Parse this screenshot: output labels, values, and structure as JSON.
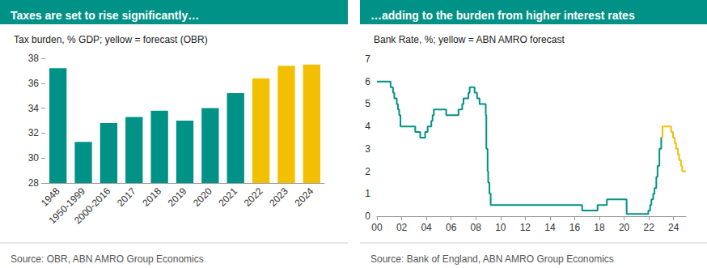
{
  "chart_data": [
    {
      "type": "bar",
      "title": "Taxes are set to rise significantly…",
      "subtitle": "Tax burden, % GDP; yellow = forecast (OBR)",
      "source": "Source: OBR, ABN AMRO Group Economics",
      "categories": [
        "1948",
        "1950-1999",
        "2000-2016",
        "2017",
        "2018",
        "2019",
        "2020",
        "2021",
        "2022",
        "2023",
        "2024"
      ],
      "values": [
        37.2,
        31.3,
        32.8,
        33.3,
        33.8,
        33.0,
        34.0,
        35.2,
        36.4,
        37.4,
        37.5
      ],
      "colors": [
        "#009286",
        "#009286",
        "#009286",
        "#009286",
        "#009286",
        "#009286",
        "#009286",
        "#009286",
        "#f3c000",
        "#f3c000",
        "#f3c000"
      ],
      "ylim": [
        28,
        38
      ],
      "yticks": [
        28,
        30,
        32,
        34,
        36,
        38
      ],
      "grid": false
    },
    {
      "type": "line",
      "title": "…adding to the burden from higher interest rates",
      "subtitle": "Bank Rate, %; yellow = ABN AMRO forecast",
      "source": "Source: Bank of England, ABN AMRO Group Economics",
      "x": [
        2000.0,
        2001.1,
        2001.3,
        2001.4,
        2001.6,
        2001.7,
        2001.8,
        2001.9,
        2003.1,
        2003.5,
        2003.9,
        2004.1,
        2004.4,
        2004.5,
        2004.6,
        2005.6,
        2006.6,
        2006.9,
        2007.0,
        2007.4,
        2007.5,
        2007.9,
        2008.1,
        2008.3,
        2008.8,
        2008.85,
        2008.95,
        2009.0,
        2009.1,
        2009.2,
        2016.6,
        2017.85,
        2018.6,
        2020.2,
        2021.95,
        2022.1,
        2022.2,
        2022.35,
        2022.45,
        2022.6,
        2022.7,
        2022.85,
        2023.0,
        2023.1,
        2023.8,
        2023.95,
        2024.1,
        2024.2,
        2024.35,
        2024.45,
        2024.6,
        2024.7,
        2025.0
      ],
      "series": [
        {
          "color": "#009286",
          "values": [
            6,
            5.75,
            5.5,
            5.25,
            5,
            4.75,
            4.5,
            4,
            3.75,
            3.5,
            3.75,
            4,
            4.25,
            4.5,
            4.75,
            4.5,
            4.75,
            5,
            5.25,
            5.5,
            5.75,
            5.5,
            5.25,
            5,
            4.5,
            3,
            2,
            1.5,
            1,
            0.5,
            0.25,
            0.5,
            0.75,
            0.1,
            0.25,
            0.5,
            0.75,
            1,
            1.25,
            1.75,
            2.25,
            3,
            3.5,
            null,
            null,
            null,
            null,
            null,
            null,
            null,
            null,
            null,
            null
          ]
        },
        {
          "color": "#f3c000",
          "values": [
            null,
            null,
            null,
            null,
            null,
            null,
            null,
            null,
            null,
            null,
            null,
            null,
            null,
            null,
            null,
            null,
            null,
            null,
            null,
            null,
            null,
            null,
            null,
            null,
            null,
            null,
            null,
            null,
            null,
            null,
            null,
            null,
            null,
            null,
            null,
            null,
            null,
            null,
            null,
            null,
            null,
            null,
            3.5,
            4,
            3.75,
            3.5,
            3.25,
            3,
            2.75,
            2.5,
            2.25,
            2,
            2
          ]
        }
      ],
      "xlim": [
        2000,
        2025
      ],
      "xticks": [
        {
          "value": 2000,
          "label": "00"
        },
        {
          "value": 2002,
          "label": "02"
        },
        {
          "value": 2004,
          "label": "04"
        },
        {
          "value": 2006,
          "label": "06"
        },
        {
          "value": 2008,
          "label": "08"
        },
        {
          "value": 2010,
          "label": "10"
        },
        {
          "value": 2012,
          "label": "12"
        },
        {
          "value": 2014,
          "label": "14"
        },
        {
          "value": 2016,
          "label": "16"
        },
        {
          "value": 2018,
          "label": "18"
        },
        {
          "value": 2020,
          "label": "20"
        },
        {
          "value": 2022,
          "label": "22"
        },
        {
          "value": 2024,
          "label": "24"
        }
      ],
      "ylim": [
        0,
        7
      ],
      "yticks": [
        0,
        1,
        2,
        3,
        4,
        5,
        6,
        7
      ],
      "grid": false
    }
  ]
}
